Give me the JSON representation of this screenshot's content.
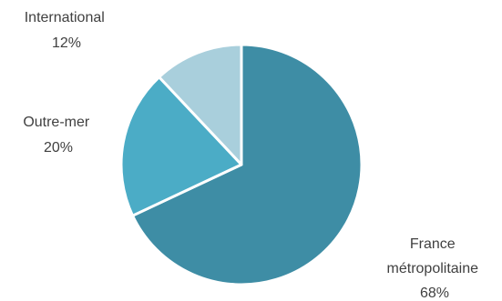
{
  "chart_data": {
    "type": "pie",
    "start_angle_deg": 0,
    "direction": "clockwise",
    "slices": [
      {
        "label_lines": [
          "France",
          "métropolitaine"
        ],
        "value_text": "68%",
        "value": 68,
        "color": "#3E8DA5"
      },
      {
        "label_lines": [
          "Outre-mer"
        ],
        "value_text": "20%",
        "value": 20,
        "color": "#4BACC6"
      },
      {
        "label_lines": [
          "International"
        ],
        "value_text": "12%",
        "value": 12,
        "color": "#A9CFDC"
      }
    ],
    "separator_color": "#ffffff"
  }
}
